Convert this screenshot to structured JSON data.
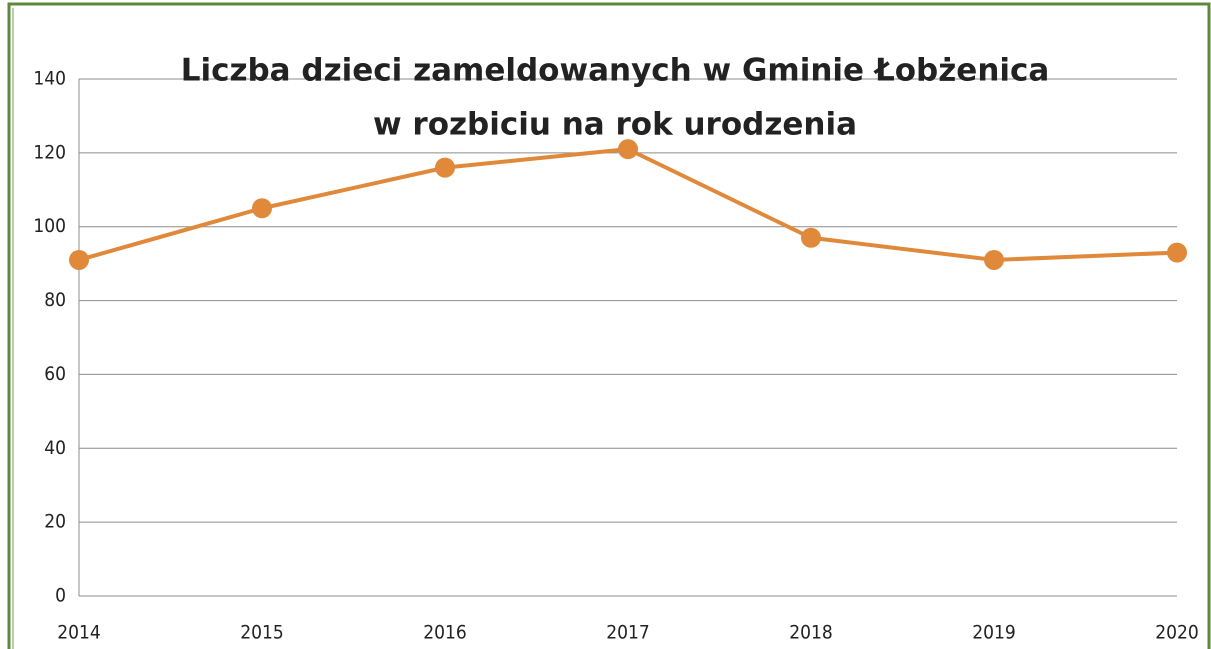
{
  "chart_data": {
    "type": "line",
    "title": [
      "Liczba dzieci zameldowanych w Gminie Łobżenica",
      "w rozbiciu na rok urodzenia"
    ],
    "categories": [
      "2014",
      "2015",
      "2016",
      "2017",
      "2018",
      "2019",
      "2020"
    ],
    "series": [
      {
        "name": null,
        "color": "#e0893a",
        "values": [
          91,
          105,
          116,
          121,
          97,
          91,
          93
        ]
      }
    ],
    "ylim": [
      0,
      140
    ],
    "yticks": [
      0,
      20,
      40,
      60,
      80,
      100,
      120,
      140
    ],
    "grid": true
  }
}
